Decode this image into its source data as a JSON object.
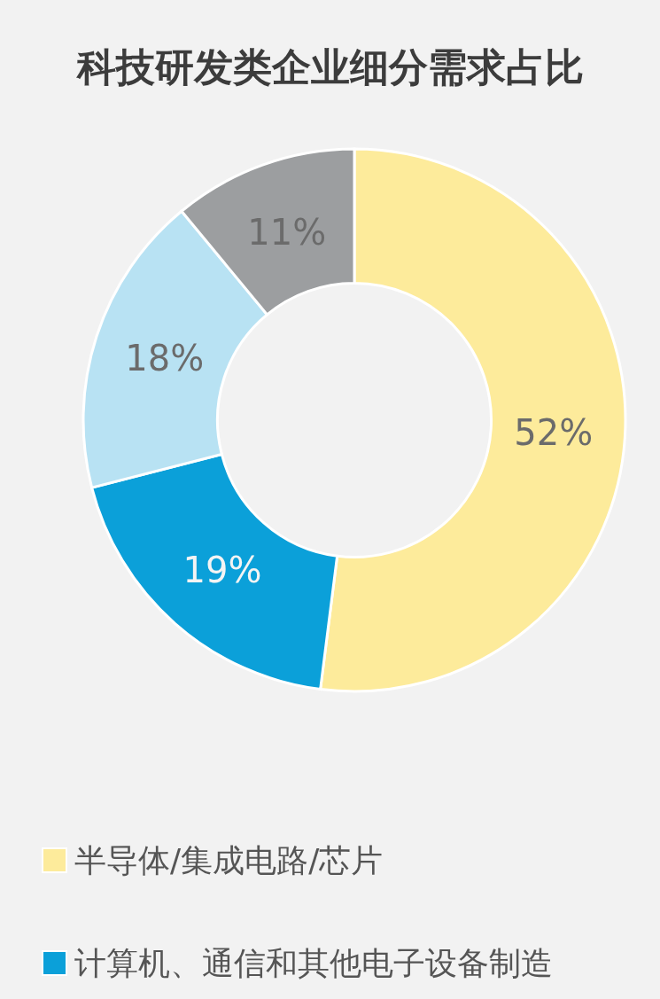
{
  "chart_data": {
    "type": "donut",
    "title": "科技研发类企业细分需求占比",
    "categories": [
      "半导体/集成电路/芯片",
      "计算机、通信和其他电子设备制造",
      null,
      null
    ],
    "values": [
      52,
      19,
      18,
      11
    ],
    "colors": [
      "#fdeb9b",
      "#0ba0d9",
      "#b8e2f3",
      "#9c9ea0"
    ],
    "value_labels": [
      "52%",
      "19%",
      "18%",
      "11%"
    ],
    "legend": "bottom"
  }
}
